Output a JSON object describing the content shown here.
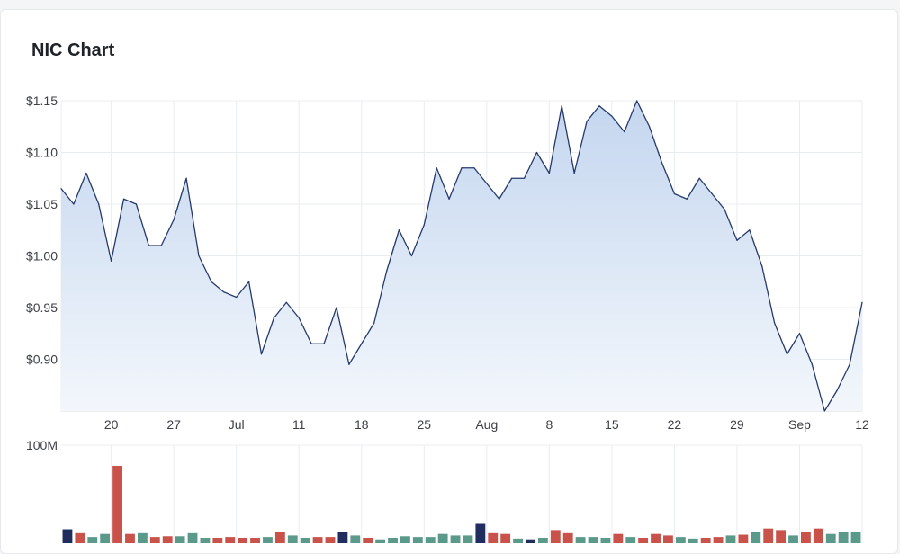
{
  "header": {
    "title": "NIC Chart"
  },
  "colors": {
    "line": "#253a6b",
    "area_top": "#c4d6ef",
    "area_bottom": "#f3f7fc",
    "grid": "#e9ecef",
    "vol_up": "#5b9a8b",
    "vol_down": "#c9524a",
    "vol_other": "#1f2e5e"
  },
  "chart_data": [
    {
      "type": "area",
      "title": "",
      "xlabel": "",
      "ylabel": "",
      "y_ticks": [
        "$0.90",
        "$0.95",
        "$1.00",
        "$1.05",
        "$1.10",
        "$1.15"
      ],
      "y_tick_values": [
        0.9,
        0.95,
        1.0,
        1.05,
        1.1,
        1.15
      ],
      "x_tick_labels": [
        "20",
        "27",
        "Jul",
        "11",
        "18",
        "25",
        "Aug",
        "8",
        "15",
        "22",
        "29",
        "Sep",
        "12"
      ],
      "x_tick_index": [
        4,
        9,
        14,
        19,
        24,
        29,
        34,
        39,
        44,
        49,
        54,
        59,
        64
      ],
      "ylim": [
        0.85,
        1.15
      ],
      "grid": true,
      "series": [
        {
          "values": [
            1.065,
            1.05,
            1.08,
            1.05,
            0.995,
            1.055,
            1.05,
            1.01,
            1.01,
            1.035,
            1.075,
            1.0,
            0.975,
            0.965,
            0.96,
            0.975,
            0.905,
            0.94,
            0.955,
            0.94,
            0.915,
            0.915,
            0.95,
            0.895,
            0.915,
            0.935,
            0.985,
            1.025,
            1.0,
            1.03,
            1.085,
            1.055,
            1.085,
            1.085,
            1.07,
            1.055,
            1.075,
            1.075,
            1.1,
            1.08,
            1.145,
            1.08,
            1.13,
            1.145,
            1.135,
            1.12,
            1.15,
            1.125,
            1.09,
            1.06,
            1.055,
            1.075,
            1.06,
            1.045,
            1.015,
            1.025,
            0.99,
            0.935,
            0.905,
            0.925,
            0.895,
            0.85,
            0.87,
            0.895,
            0.955
          ]
        }
      ]
    },
    {
      "type": "bar",
      "title": "",
      "y_ticks": [
        "100M"
      ],
      "y_tick_values": [
        100
      ],
      "ylim": [
        0,
        100
      ],
      "values": [
        18,
        13,
        8,
        12,
        100,
        12,
        13,
        8,
        9,
        9,
        13,
        7,
        7,
        8,
        7,
        7,
        8,
        15,
        10,
        7,
        8,
        8,
        15,
        10,
        7,
        5,
        7,
        9,
        8,
        8,
        12,
        10,
        10,
        25,
        13,
        12,
        6,
        5,
        7,
        17,
        13,
        8,
        8,
        7,
        12,
        8,
        7,
        12,
        10,
        8,
        6,
        7,
        8,
        10,
        11,
        15,
        19,
        17,
        10,
        15,
        19,
        12,
        14,
        14
      ],
      "colors": [
        "other",
        "down",
        "up",
        "up",
        "down",
        "down",
        "up",
        "down",
        "down",
        "up",
        "up",
        "up",
        "down",
        "down",
        "down",
        "down",
        "up",
        "down",
        "up",
        "up",
        "down",
        "down",
        "other",
        "up",
        "down",
        "up",
        "up",
        "up",
        "up",
        "up",
        "up",
        "up",
        "up",
        "other",
        "down",
        "down",
        "up",
        "other",
        "up",
        "down",
        "down",
        "up",
        "up",
        "up",
        "down",
        "up",
        "down",
        "down",
        "down",
        "up",
        "up",
        "down",
        "down",
        "up",
        "down",
        "up",
        "down",
        "down",
        "up",
        "down",
        "down",
        "up",
        "up",
        "up"
      ]
    }
  ]
}
